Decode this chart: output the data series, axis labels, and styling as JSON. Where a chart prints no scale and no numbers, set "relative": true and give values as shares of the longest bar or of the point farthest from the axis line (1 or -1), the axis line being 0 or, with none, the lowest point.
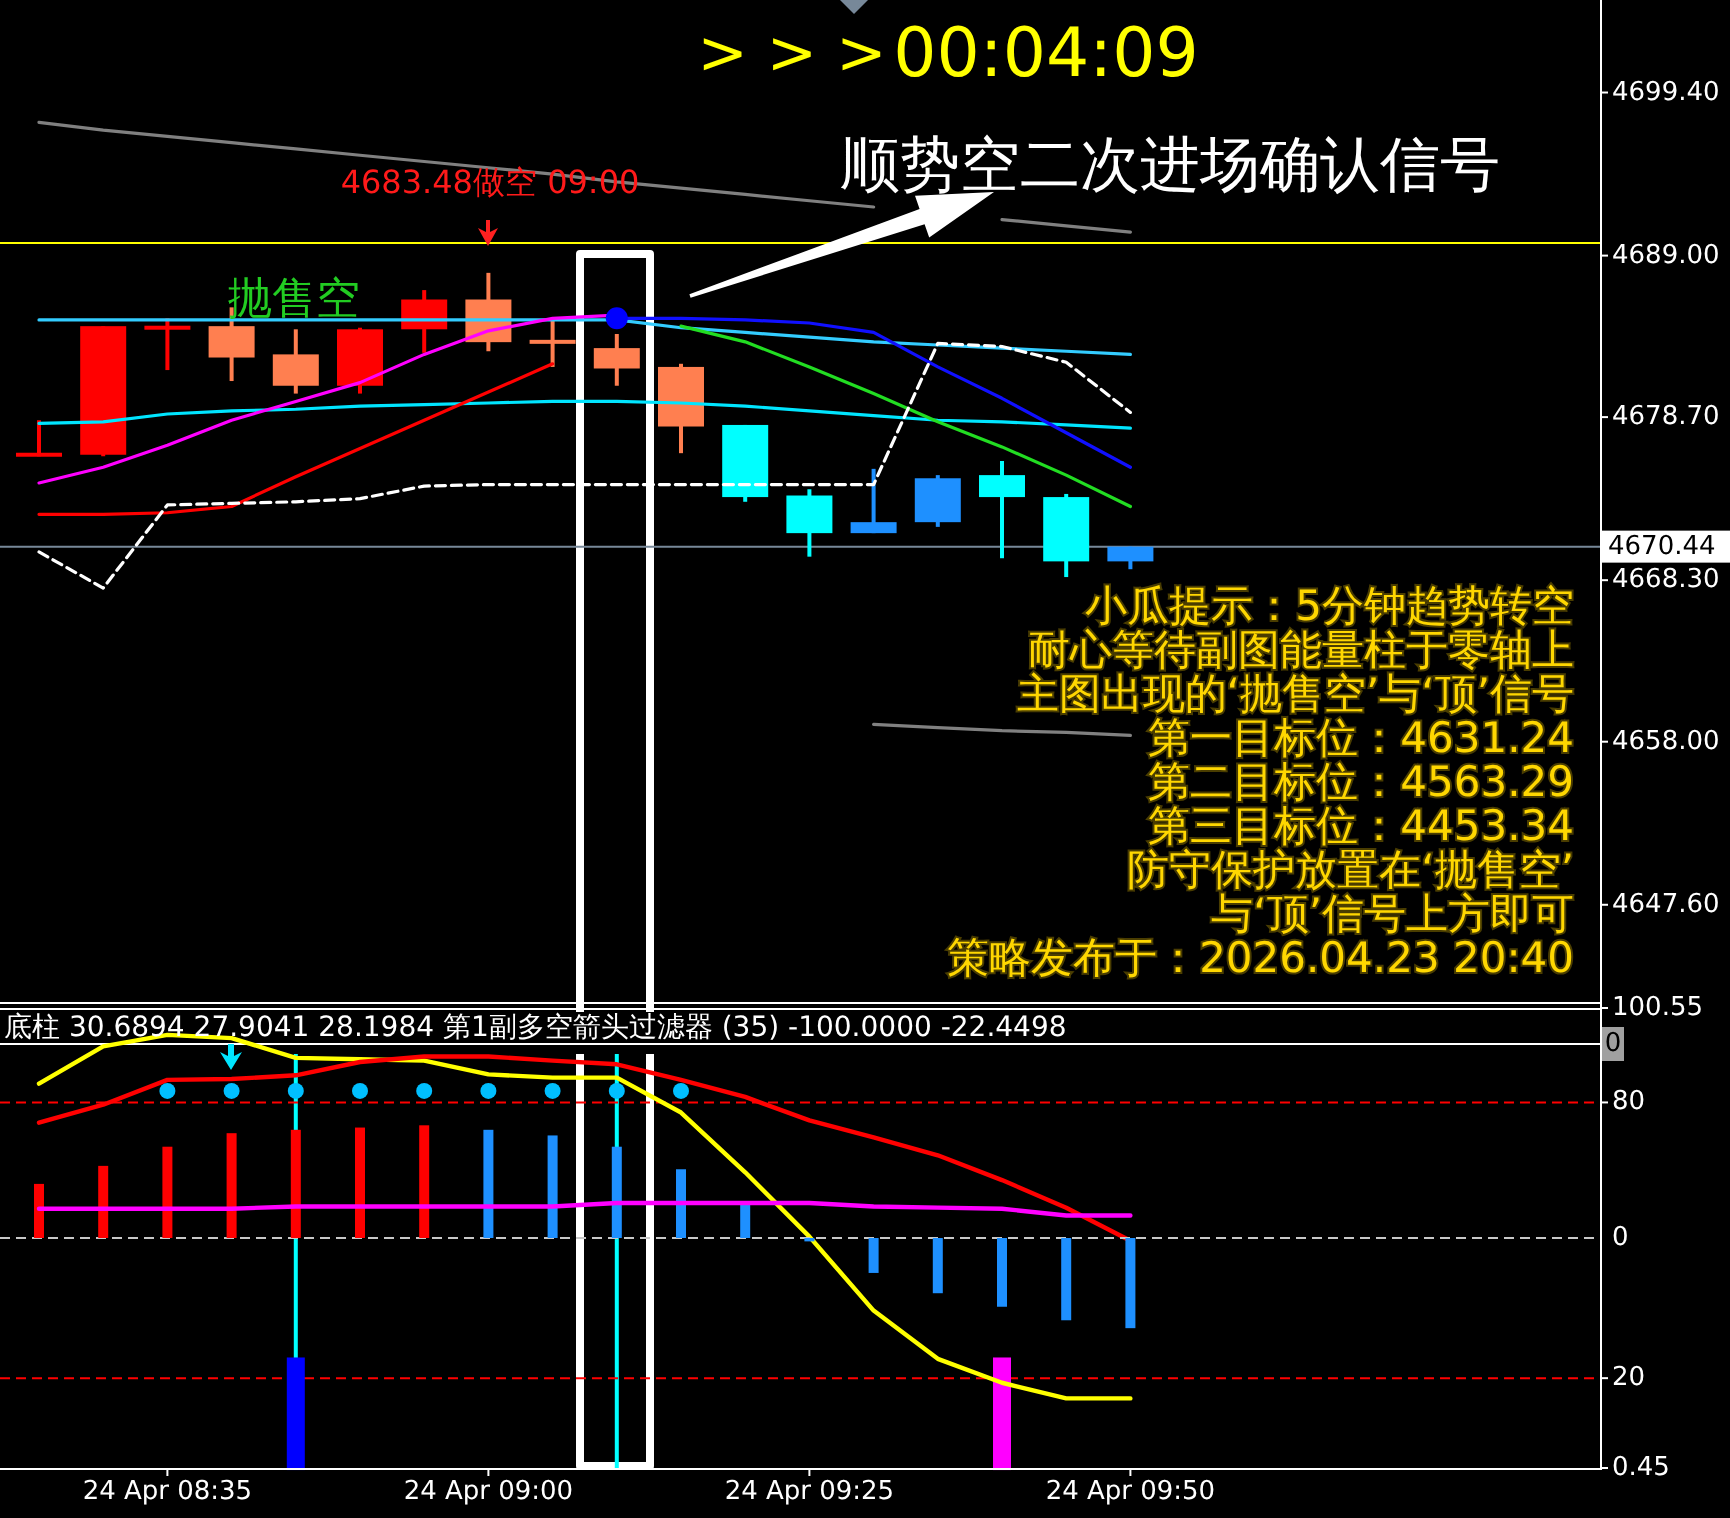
{
  "chart_data": [
    {
      "type": "candlestick",
      "categories": [
        null,
        null,
        null,
        null,
        null,
        null,
        null,
        null,
        null,
        null,
        null,
        null,
        null,
        null,
        null,
        null,
        null,
        null
      ],
      "ohlc": [
        [
          4676.3,
          4678.5,
          4676.2,
          4676.3
        ],
        [
          4676.3,
          4684.5,
          4676.2,
          4684.5
        ],
        [
          4684.4,
          4685.0,
          4681.7,
          4684.4
        ],
        [
          4684.5,
          4685.7,
          4681.0,
          4682.5
        ],
        [
          4682.7,
          4684.3,
          4680.2,
          4680.7
        ],
        [
          4680.7,
          4684.4,
          4680.2,
          4684.3
        ],
        [
          4684.3,
          4686.8,
          4682.8,
          4686.2
        ],
        [
          4686.2,
          4687.9,
          4682.9,
          4683.48
        ],
        [
          4683.5,
          4684.9,
          4681.9,
          4683.5
        ],
        [
          4683.1,
          4684.0,
          4680.7,
          4681.8
        ],
        [
          4681.9,
          4682.1,
          4676.4,
          4678.1
        ],
        [
          4678.2,
          4678.2,
          4673.3,
          4673.6
        ],
        [
          4673.7,
          4674.1,
          4669.8,
          4671.3
        ],
        [
          4671.3,
          4675.4,
          4671.3,
          4672.0
        ],
        [
          4672.0,
          4675.0,
          4671.7,
          4674.8
        ],
        [
          4675.0,
          4675.9,
          4669.7,
          4673.6
        ],
        [
          4673.6,
          4673.8,
          4668.5,
          4669.5
        ],
        [
          4669.5,
          4670.44,
          4669.0,
          4670.44
        ]
      ],
      "colors": [
        "#ff0000",
        "#ff0000",
        "#ff0000",
        "#ff7f50",
        "#ff7f50",
        "#ff0000",
        "#ff0000",
        "#ff7f50",
        "#ff7f50",
        "#ff7f50",
        "#ff7f50",
        "#00ffff",
        "#00ffff",
        "#1e90ff",
        "#1e90ff",
        "#00ffff",
        "#00ffff",
        "#1e90ff"
      ],
      "series": [
        {
          "type": "line",
          "color": "#33ccff",
          "values": [
            4684.9,
            4684.9,
            4684.9,
            4684.9,
            4684.9,
            4684.9,
            4684.9,
            4684.9,
            4684.9,
            4684.9,
            4684.4,
            4684.1,
            4683.8,
            4683.5,
            4683.3,
            4683.1,
            4682.9,
            4682.7
          ]
        },
        {
          "type": "line",
          "color": "#00e5ff",
          "values": [
            4678.3,
            4678.4,
            4678.9,
            4679.1,
            4679.2,
            4679.4,
            4679.5,
            4679.6,
            4679.7,
            4679.7,
            4679.6,
            4679.4,
            4679.1,
            4678.8,
            4678.5,
            4678.4,
            4678.2,
            4678.0
          ]
        },
        {
          "type": "line",
          "color": "#ff00ff",
          "values": [
            4674.5,
            4675.5,
            4676.9,
            4678.5,
            4679.7,
            4680.9,
            4682.7,
            4684.2,
            4685.0,
            4685.2,
            null,
            null,
            null,
            null,
            null,
            null,
            null,
            null
          ]
        },
        {
          "type": "line",
          "color": "#ff0000",
          "values": [
            4672.5,
            4672.5,
            4672.6,
            4673.0,
            4674.9,
            4676.7,
            4678.5,
            4680.3,
            4682.1,
            null,
            null,
            null,
            null,
            null,
            null,
            null,
            null,
            null
          ]
        },
        {
          "type": "line",
          "color": "#1010ff",
          "values": [
            null,
            null,
            null,
            null,
            null,
            null,
            null,
            null,
            null,
            4685.0,
            4685.0,
            4684.9,
            4684.7,
            4684.1,
            4681.9,
            4679.9,
            4677.7,
            4675.5
          ]
        },
        {
          "type": "line",
          "color": "#22dd22",
          "values": [
            null,
            null,
            null,
            null,
            null,
            null,
            null,
            null,
            null,
            null,
            4684.5,
            4683.5,
            4681.9,
            4680.2,
            4678.4,
            4676.8,
            4675.0,
            4673.0
          ]
        },
        {
          "type": "line",
          "color": "#ffffff",
          "line_style": "dashed",
          "values": [
            4670.1,
            4667.8,
            4673.1,
            4673.2,
            4673.3,
            4673.5,
            4674.3,
            4674.4,
            4674.4,
            4674.4,
            4674.4,
            4674.4,
            4674.4,
            4674.4,
            4683.4,
            4683.2,
            4682.2,
            4679.0
          ]
        },
        {
          "type": "line",
          "color": "#808080",
          "values": [
            4697.5,
            4697.0,
            4696.6,
            4696.2,
            4695.8,
            4695.4,
            4695.0,
            4694.6,
            4694.2,
            4693.7,
            4693.3,
            4692.9,
            4692.5,
            4692.1,
            null,
            4691.3,
            4690.9,
            4690.5
          ]
        },
        {
          "type": "line",
          "color": "#808080",
          "values": [
            null,
            null,
            null,
            null,
            null,
            null,
            null,
            null,
            null,
            null,
            null,
            null,
            null,
            4659.1,
            4658.9,
            4658.7,
            4658.6,
            4658.4
          ]
        },
        {
          "type": "scatter",
          "marker": "circle",
          "color": "#0000ff",
          "values": [
            null,
            null,
            null,
            null,
            null,
            null,
            null,
            null,
            null,
            4685.0,
            null,
            null,
            null,
            null,
            null,
            null,
            null,
            null
          ]
        }
      ],
      "ylim": [
        4641.4,
        4705.3
      ],
      "yticks": [
        {
          "value": 4699.4,
          "label": "4699.40"
        },
        {
          "value": 4689,
          "label": "4689.00"
        },
        {
          "value": 4678.7,
          "label": "4678.70"
        },
        {
          "value": 4668.3,
          "label": "4668.30"
        },
        {
          "value": 4658,
          "label": "4658.00"
        },
        {
          "value": 4647.6,
          "label": "4647.60"
        }
      ],
      "ref_lines": [
        {
          "axis": "y",
          "value": 4689.8,
          "color": "#ffff00"
        },
        {
          "axis": "y",
          "value": 4670.44,
          "label": "4670.44",
          "color": "#778899"
        }
      ],
      "annotations": [
        "顺势空二次进场确认信号",
        "4683.48做空 09:00",
        "抛售空",
        "> > >",
        "00:04:09",
        "小瓜提示：5分钟趋势转空",
        "耐心等待副图能量柱于零轴上",
        "主图出现的‘抛售空’与‘顶’信号",
        "第一目标位：4631.24",
        "第二目标位：4563.29",
        "第三目标位：4453.34",
        "防守保护放置在‘抛售空’",
        "与‘顶’信号上方即可",
        "策略发布于：2026.04.23 20:40"
      ]
    },
    {
      "type": "line",
      "title": "底柱 30.6894 27.9041 28.1984  第1副多空箭头过滤器 (35) -100.0000 -22.4498",
      "categories": [
        null,
        null,
        "24 Apr 08:35",
        null,
        null,
        null,
        null,
        "24 Apr 09:00",
        null,
        null,
        null,
        null,
        "24 Apr 09:25",
        null,
        null,
        null,
        null,
        "24 Apr 09:50"
      ],
      "series": [
        {
          "type": "bar",
          "values": [
            null,
            null,
            null,
            null,
            24.5,
            null,
            null,
            null,
            null,
            null,
            null,
            null,
            null,
            null,
            null,
            24.5,
            null,
            null
          ],
          "colors": [
            null,
            null,
            null,
            null,
            "#0000ff",
            null,
            null,
            null,
            null,
            null,
            null,
            null,
            null,
            null,
            null,
            "#ff00ff",
            null,
            null
          ]
        },
        {
          "color": "#ffff00",
          "values": [
            84.1,
            92.2,
            94.7,
            94.0,
            89.7,
            89.4,
            89.1,
            86.1,
            85.4,
            85.4,
            77.8,
            64.8,
            50.8,
            34.7,
            24.2,
            19.0,
            15.6,
            15.6
          ]
        },
        {
          "color": "#ff0000",
          "values": [
            75.6,
            79.5,
            84.9,
            85.1,
            85.9,
            88.8,
            90.0,
            90.0,
            89.1,
            88.3,
            84.9,
            81.2,
            76.1,
            72.4,
            68.5,
            63.1,
            57.1,
            49.9
          ]
        },
        {
          "type": "scatter",
          "marker": "circle",
          "color": "#00bfff",
          "values": [
            null,
            null,
            82.5,
            82.5,
            82.5,
            82.5,
            82.5,
            82.5,
            82.5,
            82.5,
            82.5,
            null,
            null,
            null,
            null,
            null,
            null,
            null
          ]
        }
      ],
      "ylim": [
        0.45,
        100.55
      ],
      "yticks": [
        100.55,
        80,
        20,
        0.45
      ],
      "ref_lines": [
        {
          "axis": "y",
          "value": 92.7,
          "color": "#ffffff"
        },
        {
          "axis": "y",
          "value": 80,
          "color": "#ff0000",
          "line_style": "dashed"
        },
        {
          "axis": "y",
          "value": 20,
          "color": "#ff0000",
          "line_style": "dashed"
        }
      ],
      "annotations": [
        "0"
      ]
    },
    {
      "type": "bar",
      "relative": true,
      "categories": [
        null,
        null,
        null,
        null,
        null,
        null,
        null,
        null,
        null,
        null,
        null,
        null,
        null,
        null,
        null,
        null,
        null,
        null
      ],
      "series": [
        {
          "values": [
            0.48,
            0.64,
            0.81,
            0.93,
            0.96,
            0.98,
            1,
            0.96,
            0.91,
            0.81,
            0.61,
            0.31,
            -0.03,
            -0.31,
            -0.49,
            -0.61,
            -0.73,
            -0.8
          ],
          "colors": [
            "#ff0000",
            "#ff0000",
            "#ff0000",
            "#ff0000",
            "#ff0000",
            "#ff0000",
            "#ff0000",
            "#1e90ff",
            "#1e90ff",
            "#1e90ff",
            "#1e90ff",
            "#1e90ff",
            "#1e90ff",
            "#1e90ff",
            "#1e90ff",
            "#1e90ff",
            "#1e90ff",
            "#1e90ff"
          ]
        },
        {
          "type": "line",
          "color": "#ff00ff",
          "values": [
            0.26,
            0.26,
            0.26,
            0.26,
            0.28,
            0.28,
            0.28,
            0.28,
            0.28,
            0.31,
            0.31,
            0.31,
            0.31,
            0.28,
            0.27,
            0.26,
            0.2,
            0.2
          ]
        }
      ],
      "ref_lines": [
        {
          "axis": "y",
          "value": 0,
          "label": "0",
          "color": "#c8c8c8",
          "line_style": "dashed"
        }
      ]
    }
  ]
}
